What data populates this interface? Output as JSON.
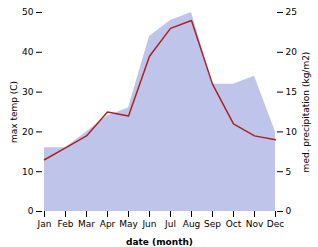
{
  "chart_data": {
    "type": "line",
    "xlabel": "date (month)",
    "ylabel": "max temp (C)",
    "y2label": "med. precipitation (kg/m2)",
    "categories": [
      "Jan",
      "Feb",
      "Mar",
      "Apr",
      "May",
      "Jun",
      "Jul",
      "Aug",
      "Sep",
      "Oct",
      "Nov",
      "Dec"
    ],
    "series": [
      {
        "type": "area",
        "color": "#b8bfe8",
        "values": [
          16,
          16,
          20,
          24,
          26,
          44,
          48,
          50,
          32,
          32,
          34,
          20
        ]
      },
      {
        "type": "line",
        "color": "#aa2222",
        "values": [
          13,
          16,
          19,
          25,
          24,
          39,
          46,
          48,
          32,
          22,
          19,
          18
        ]
      }
    ],
    "ylim": [
      0,
      50
    ],
    "yticks": [
      0,
      10,
      20,
      30,
      40,
      50
    ],
    "y2lim": [
      0,
      25
    ],
    "y2ticks": [
      0,
      5,
      10,
      15,
      20,
      25
    ]
  }
}
